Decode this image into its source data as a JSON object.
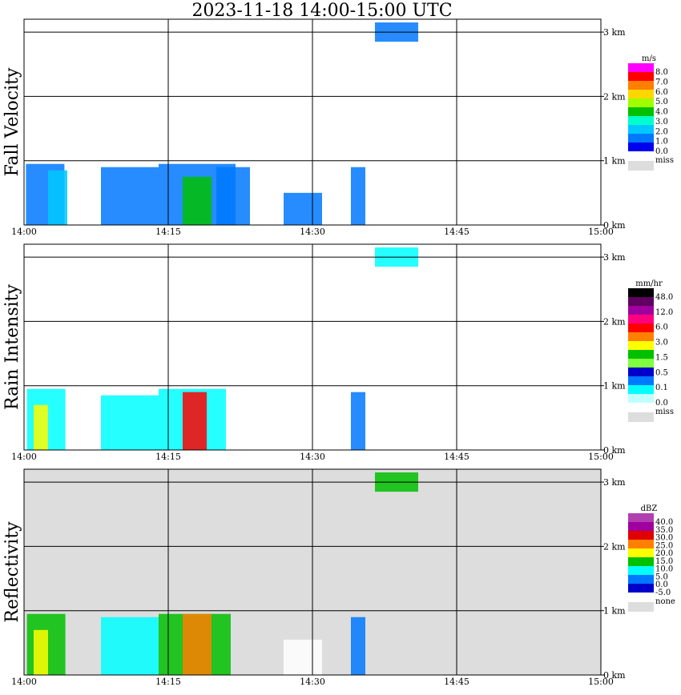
{
  "chart_data": {
    "type": "heatmap",
    "title": "2023-11-18   14:00-15:00 UTC",
    "x_ticks": [
      "14:00",
      "14:15",
      "14:30",
      "14:45",
      "15:00"
    ],
    "x_range": [
      "14:00",
      "15:00"
    ],
    "y_ticks": [
      "0 km",
      "1 km",
      "2 km",
      "3 km"
    ],
    "y_range_km": [
      0,
      3.1
    ],
    "grid": true,
    "panels": [
      {
        "ylabel": "Fall Velocity",
        "background": "#ffffff",
        "legend": {
          "unit": "m/s",
          "labels": [
            "8.0",
            "7.0",
            "6.0",
            "5.0",
            "4.0",
            "3.0",
            "2.0",
            "1.0",
            "0.0"
          ],
          "colors": [
            "#ff00ff",
            "#ff0000",
            "#ff7f00",
            "#ffd700",
            "#a0ff00",
            "#00c000",
            "#00ffcc",
            "#00c8ff",
            "#0078ff",
            "#0000ee"
          ],
          "miss_label": "miss",
          "miss_color": "#dddddd"
        },
        "precip": [
          {
            "t_min": 0.2,
            "h_km": 0.95,
            "w_min": 4.0,
            "color": "#0078ff"
          },
          {
            "t_min": 2.5,
            "h_km": 0.85,
            "w_min": 2.0,
            "color": "#00c8ff"
          },
          {
            "t_min": 8.0,
            "h_km": 0.9,
            "w_min": 6.0,
            "color": "#0078ff"
          },
          {
            "t_min": 14.0,
            "h_km": 0.95,
            "w_min": 8.0,
            "color": "#0078ff"
          },
          {
            "t_min": 16.5,
            "h_km": 0.75,
            "w_min": 3.0,
            "color": "#00c000"
          },
          {
            "t_min": 20.0,
            "h_km": 0.9,
            "w_min": 3.5,
            "color": "#0078ff"
          },
          {
            "t_min": 27.0,
            "h_km": 0.5,
            "w_min": 4.0,
            "color": "#0078ff"
          },
          {
            "t_min": 34.0,
            "h_km": 0.9,
            "w_min": 1.5,
            "color": "#0078ff"
          },
          {
            "t_min": 36.5,
            "h_km": 3.15,
            "w_min": 4.5,
            "color": "#0078ff"
          }
        ]
      },
      {
        "ylabel": "Rain Intensity",
        "background": "#ffffff",
        "legend": {
          "unit": "mm/hr",
          "labels": [
            "48.0",
            "12.0",
            "6.0",
            "3.0",
            "1.5",
            "0.5",
            "0.1",
            "0.0"
          ],
          "colors": [
            "#000000",
            "#600060",
            "#a000a0",
            "#ff0080",
            "#ff0000",
            "#ff7f00",
            "#ffff00",
            "#00c000",
            "#80ff40",
            "#0000cc",
            "#0078ff",
            "#00ffff",
            "#c0ffff"
          ],
          "miss_label": "miss",
          "miss_color": "#dddddd"
        },
        "precip": [
          {
            "t_min": 0.3,
            "h_km": 0.95,
            "w_min": 4.0,
            "color": "#00ffff"
          },
          {
            "t_min": 1.0,
            "h_km": 0.7,
            "w_min": 1.5,
            "color": "#ffff00"
          },
          {
            "t_min": 8.0,
            "h_km": 0.85,
            "w_min": 6.0,
            "color": "#00ffff"
          },
          {
            "t_min": 14.0,
            "h_km": 0.95,
            "w_min": 7.0,
            "color": "#00ffff"
          },
          {
            "t_min": 16.5,
            "h_km": 0.9,
            "w_min": 2.5,
            "color": "#ff0000"
          },
          {
            "t_min": 34.0,
            "h_km": 0.9,
            "w_min": 1.5,
            "color": "#0078ff"
          },
          {
            "t_min": 36.5,
            "h_km": 3.15,
            "w_min": 4.5,
            "color": "#00ffff"
          }
        ]
      },
      {
        "ylabel": "Reflectivity",
        "background": "#dddddd",
        "legend": {
          "unit": "dBZ",
          "labels": [
            "40.0",
            "35.0",
            "30.0",
            "25.0",
            "20.0",
            "15.0",
            "10.0",
            "5.0",
            "0.0",
            "-5.0"
          ],
          "colors": [
            "#b040b0",
            "#a000a0",
            "#e00000",
            "#ff7f00",
            "#ffff00",
            "#00c000",
            "#00ffff",
            "#0078ff",
            "#0000cc"
          ],
          "miss_label": "none",
          "miss_color": "#dddddd"
        },
        "precip": [
          {
            "t_min": 0.3,
            "h_km": 0.95,
            "w_min": 4.0,
            "color": "#00c000"
          },
          {
            "t_min": 1.0,
            "h_km": 0.7,
            "w_min": 1.5,
            "color": "#ffff00"
          },
          {
            "t_min": 8.0,
            "h_km": 0.9,
            "w_min": 6.0,
            "color": "#00ffff"
          },
          {
            "t_min": 14.0,
            "h_km": 0.95,
            "w_min": 7.5,
            "color": "#00c000"
          },
          {
            "t_min": 16.5,
            "h_km": 0.95,
            "w_min": 3.0,
            "color": "#ff7f00"
          },
          {
            "t_min": 27.0,
            "h_km": 0.55,
            "w_min": 4.0,
            "color": "#ffffff"
          },
          {
            "t_min": 34.0,
            "h_km": 0.9,
            "w_min": 1.5,
            "color": "#0078ff"
          },
          {
            "t_min": 36.5,
            "h_km": 3.15,
            "w_min": 4.5,
            "color": "#00c000"
          }
        ]
      }
    ]
  }
}
